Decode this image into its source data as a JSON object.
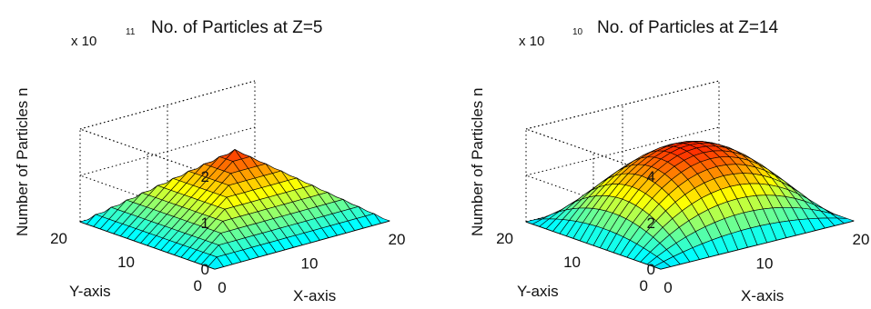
{
  "chart_data": [
    {
      "type": "surface",
      "title": "No. of Particles at Z=5",
      "zlabel": "Number of Particles n",
      "xlabel": "X-axis",
      "ylabel": "Y-axis",
      "exponent_prefix": "x 10",
      "exponent": "11",
      "xlim": [
        0,
        20
      ],
      "ylim": [
        0,
        20
      ],
      "zlim": [
        0,
        2
      ],
      "xticks": [
        "0",
        "10",
        "20"
      ],
      "yticks": [
        "0",
        "10",
        "20"
      ],
      "zticks": [
        "0",
        "1",
        "2"
      ],
      "peak_value": 1.55,
      "shape": "pyramid",
      "colormap": "jet",
      "grid": true
    },
    {
      "type": "surface",
      "title": "No. of Particles at Z=14",
      "zlabel": "Number of Particles n",
      "xlabel": "X-axis",
      "ylabel": "Y-axis",
      "exponent_prefix": "x 10",
      "exponent": "10",
      "xlim": [
        0,
        20
      ],
      "ylim": [
        0,
        20
      ],
      "zlim": [
        0,
        4
      ],
      "xticks": [
        "0",
        "10",
        "20"
      ],
      "yticks": [
        "0",
        "10",
        "20"
      ],
      "zticks": [
        "0",
        "2",
        "4"
      ],
      "peak_value": 3.3,
      "shape": "dome",
      "colormap": "jet",
      "grid": true
    }
  ]
}
